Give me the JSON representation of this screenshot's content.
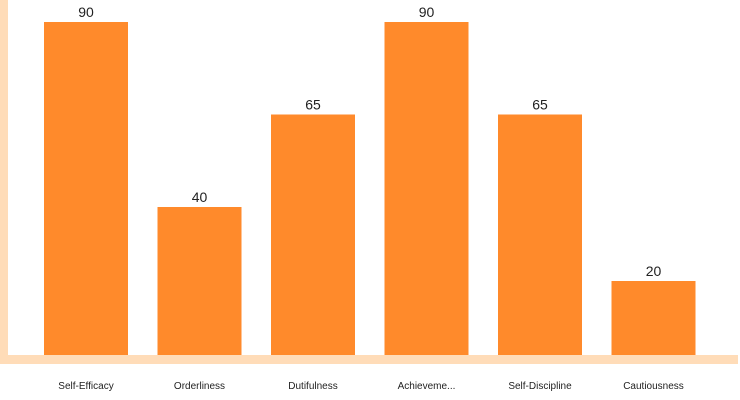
{
  "chart_data": {
    "type": "bar",
    "categories": [
      "Self-Efficacy",
      "Orderliness",
      "Dutifulness",
      "Achieveme...",
      "Self-Discipline",
      "Cautiousness"
    ],
    "values": [
      90,
      40,
      65,
      90,
      65,
      20
    ],
    "title": "",
    "xlabel": "",
    "ylabel": "",
    "ylim": [
      0,
      90
    ],
    "grid": false,
    "legend": "none",
    "colors": {
      "bar": "#ff8a2b",
      "axis": "#ffdcb8",
      "text": "#222222"
    }
  }
}
